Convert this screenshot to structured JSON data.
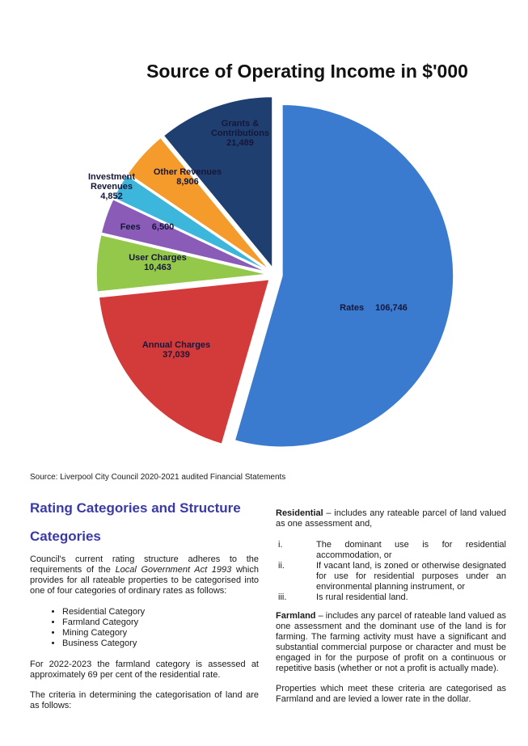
{
  "chart_data": {
    "type": "pie",
    "title": "Source of Operating Income in $'000",
    "categories": [
      "Rates",
      "Annual Charges",
      "User Charges",
      "Fees",
      "Investment Revenues",
      "Other Revenues",
      "Grants & Contributions"
    ],
    "values": [
      106746,
      37039,
      10463,
      6500,
      4852,
      8906,
      21489
    ],
    "value_labels": [
      "106,746",
      "37,039",
      "10,463",
      "6,500",
      "4,852",
      "8,906",
      "21,489"
    ],
    "colors": [
      "#3b7bcf",
      "#d33b3b",
      "#93c84a",
      "#8a5cb8",
      "#3db6dc",
      "#f49b2c",
      "#1f3f70"
    ]
  },
  "document": {
    "source": "Source: Liverpool City Council 2020-2021 audited Financial Statements",
    "heading": "Rating Categories and Structure",
    "subheading": "Categories",
    "left": {
      "intro": [
        "Council's current rating structure adheres to the requirements of the ",
        "Local Government Act 1993",
        " which provides for all rateable properties to be categorised into one of four categories of ordinary rates as follows:"
      ],
      "bullets": [
        "Residential Category",
        "Farmland Category",
        "Mining Category",
        "Business Category"
      ],
      "farmland_rate": "For 2022-2023 the farmland category is assessed at approximately 69 per cent of the residential rate.",
      "criteria": "The criteria in determining the categorisation of land are as follows:"
    },
    "right": {
      "residential": {
        "term": "Residential",
        "text": " – includes any rateable parcel of land valued as one assessment and,"
      },
      "conditions": [
        {
          "marker": "i.",
          "text": "The dominant use is for residential accommodation, or"
        },
        {
          "marker": "ii.",
          "text": "If vacant land, is zoned or otherwise designated for use for residential purposes under an environmental planning instrument, or"
        },
        {
          "marker": "iii.",
          "text": "Is rural residential land."
        }
      ],
      "farmland": {
        "term": "Farmland",
        "text": " – includes any parcel of rateable land valued as one assessment and the dominant use of the land is for farming. The farming activity must have a significant and substantial commercial purpose or character and must be engaged in for the purpose of profit on a continuous or repetitive basis (whether or not a profit is actually made)."
      },
      "closing": "Properties which meet these criteria are categorised as Farmland and are levied a lower rate in the dollar."
    }
  }
}
